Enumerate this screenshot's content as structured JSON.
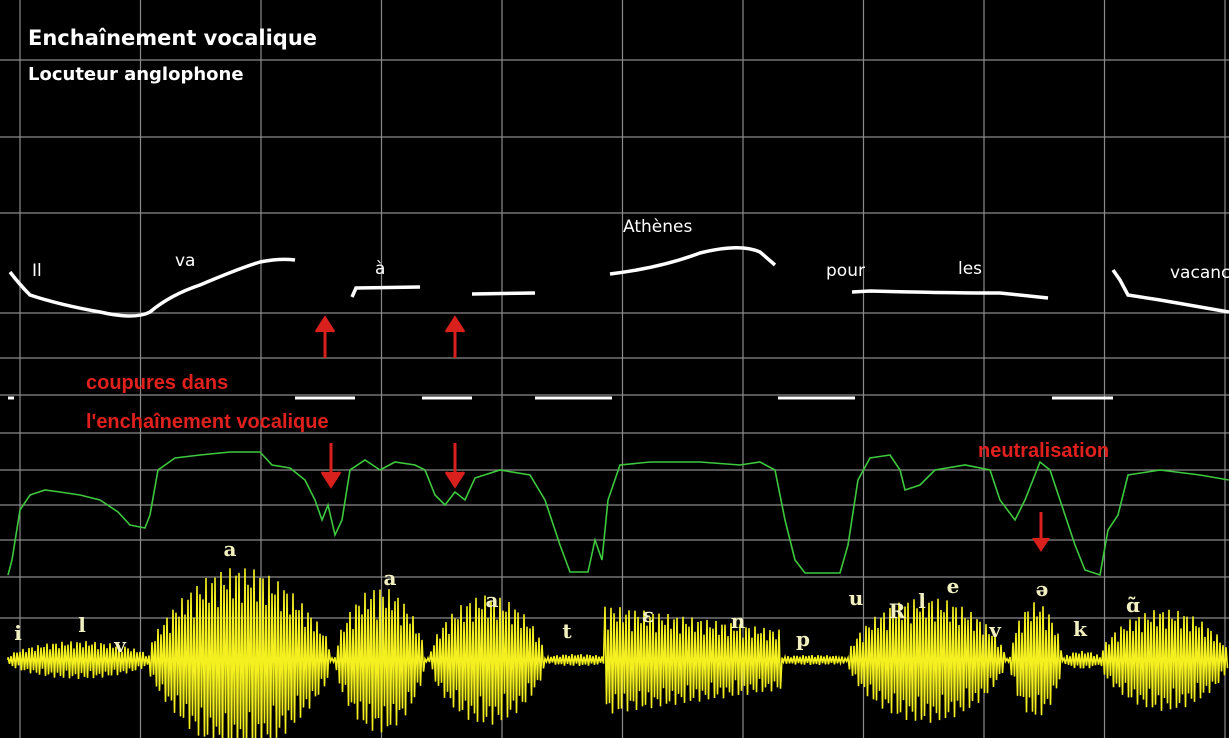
{
  "header": {
    "title": "Enchaînement  vocalique",
    "subtitle": "Locuteur anglophone"
  },
  "words": [
    "Il",
    "va",
    "à",
    "Athènes",
    "pour",
    "les",
    "vacanc"
  ],
  "annotations": [
    "coupures  dans",
    "l'enchaînement vocalique",
    "neutralisation"
  ],
  "phonemes": [
    "i",
    "l",
    "v",
    "a",
    "a",
    "a",
    "t",
    "ɛ",
    "n",
    "p",
    "u",
    "R",
    "l",
    "e",
    "v",
    "ə",
    "k",
    "ɑ̃"
  ]
}
